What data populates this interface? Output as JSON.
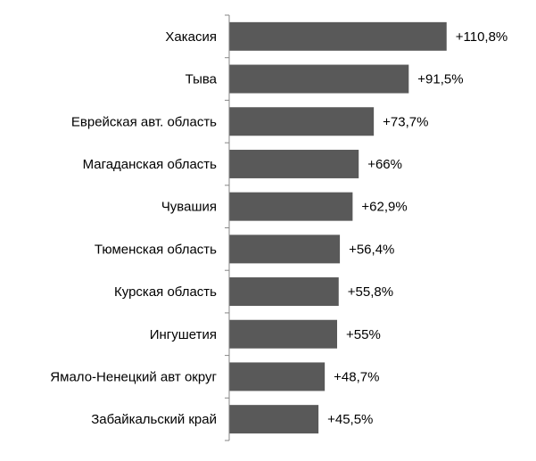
{
  "chart_data": {
    "type": "bar",
    "orientation": "horizontal",
    "title": "",
    "xlabel": "",
    "ylabel": "",
    "categories": [
      "Хакасия",
      "Тыва",
      "Еврейская авт. область",
      "Магаданская область",
      "Чувашия",
      "Тюменская область",
      "Курская область",
      "Ингушетия",
      "Ямало-Ненецкий авт округ",
      "Забайкальский край"
    ],
    "values": [
      110.8,
      91.5,
      73.7,
      66,
      62.9,
      56.4,
      55.8,
      55,
      48.7,
      45.5
    ],
    "value_labels": [
      "+110,8%",
      "+91,5%",
      "+73,7%",
      "+66%",
      "+62,9%",
      "+56,4%",
      "+55,8%",
      "+55%",
      "+48,7%",
      "+45,5%"
    ],
    "xlim": [
      0,
      130
    ],
    "grid": false,
    "legend": "none",
    "bar_color": "#595959",
    "axis_color": "#868686"
  }
}
